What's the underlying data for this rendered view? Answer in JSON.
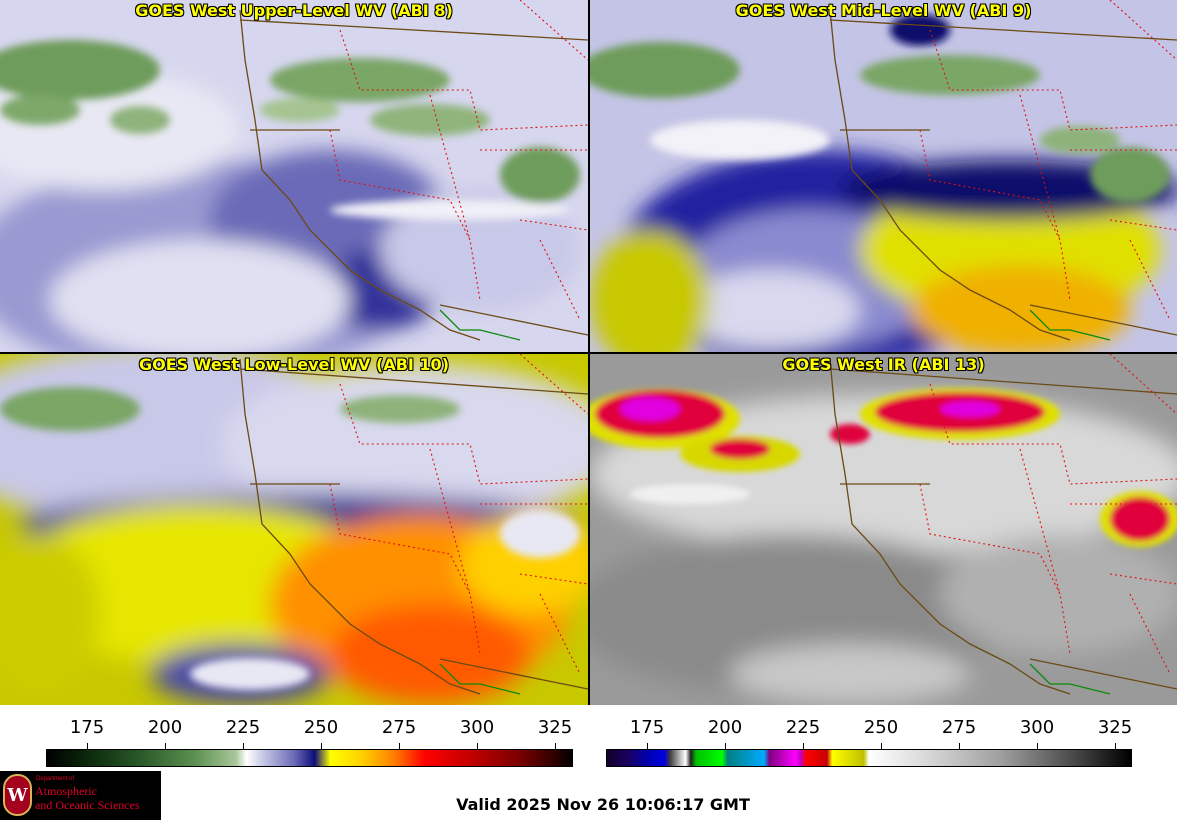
{
  "panels": {
    "top_left": {
      "title": "GOES West Upper-Level WV (ABI 8)"
    },
    "top_right": {
      "title": "GOES West Mid-Level WV (ABI 9)"
    },
    "bottom_left": {
      "title": "GOES West Low-Level WV (ABI 10)"
    },
    "bottom_right": {
      "title": "GOES West IR (ABI 13)"
    }
  },
  "colorbars": {
    "water_vapor": {
      "ticks": [
        "175",
        "200",
        "225",
        "250",
        "275",
        "300",
        "325"
      ]
    },
    "infrared": {
      "ticks": [
        "175",
        "200",
        "225",
        "250",
        "275",
        "300",
        "325"
      ]
    }
  },
  "logo": {
    "dept": "Department of",
    "line1": "Atmospheric",
    "line2": "and Oceanic Sciences",
    "seal_letter": "W"
  },
  "footer": {
    "valid_text": "Valid 2025 Nov 26 10:06:17 GMT"
  }
}
